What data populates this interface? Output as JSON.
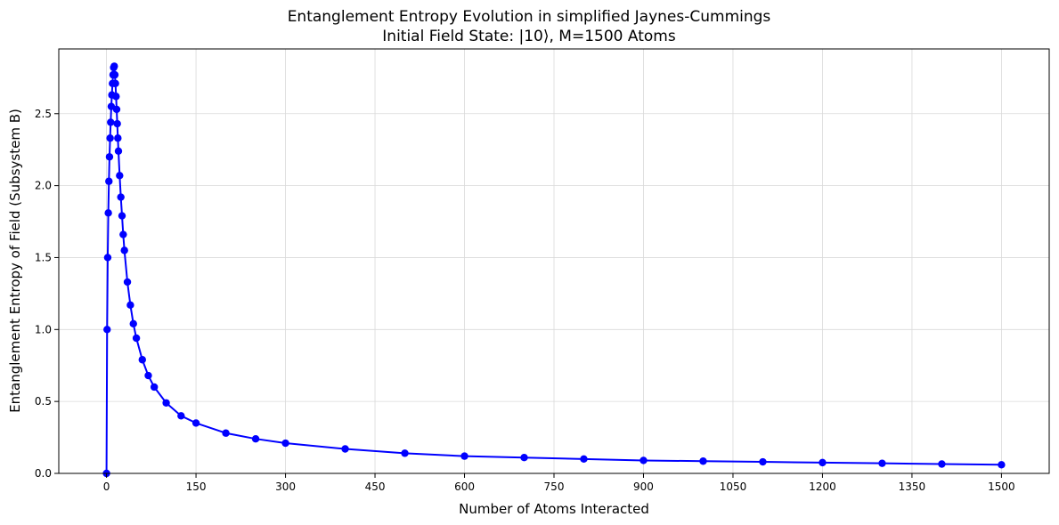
{
  "chart_data": {
    "type": "line",
    "title": "Entanglement Entropy Evolution in simplified Jaynes-Cummings",
    "subtitle": "Initial Field State: |10⟩, M=1500 Atoms",
    "xlabel": "Number of Atoms Interacted",
    "ylabel": "Entanglement Entropy of Field (Subsystem B)",
    "xlim": [
      -80,
      1580
    ],
    "ylim": [
      0,
      2.95
    ],
    "xticks": [
      0,
      150,
      300,
      450,
      600,
      750,
      900,
      1050,
      1200,
      1350,
      1500
    ],
    "yticks": [
      0.0,
      0.5,
      1.0,
      1.5,
      2.0,
      2.5
    ],
    "grid": true,
    "line_color": "#0000ff",
    "marker": "circle",
    "series": [
      {
        "x": [
          0,
          1,
          2,
          3,
          4,
          5,
          6,
          7,
          8,
          9,
          10,
          11,
          12,
          13,
          14,
          15,
          16,
          17,
          18,
          19,
          20,
          22,
          24,
          26,
          28,
          30,
          35,
          40,
          45,
          50,
          60,
          70,
          80,
          100,
          125,
          150,
          200,
          250,
          300,
          400,
          500,
          600,
          700,
          800,
          900,
          1000,
          1100,
          1200,
          1300,
          1400,
          1500
        ],
        "y": [
          0.0,
          1.0,
          1.5,
          1.81,
          2.03,
          2.2,
          2.33,
          2.44,
          2.55,
          2.63,
          2.71,
          2.77,
          2.82,
          2.83,
          2.77,
          2.71,
          2.62,
          2.53,
          2.43,
          2.33,
          2.24,
          2.07,
          1.92,
          1.79,
          1.66,
          1.55,
          1.33,
          1.17,
          1.04,
          0.94,
          0.79,
          0.68,
          0.6,
          0.49,
          0.4,
          0.35,
          0.28,
          0.24,
          0.21,
          0.17,
          0.14,
          0.12,
          0.11,
          0.1,
          0.09,
          0.085,
          0.08,
          0.075,
          0.07,
          0.065,
          0.06
        ]
      }
    ]
  }
}
